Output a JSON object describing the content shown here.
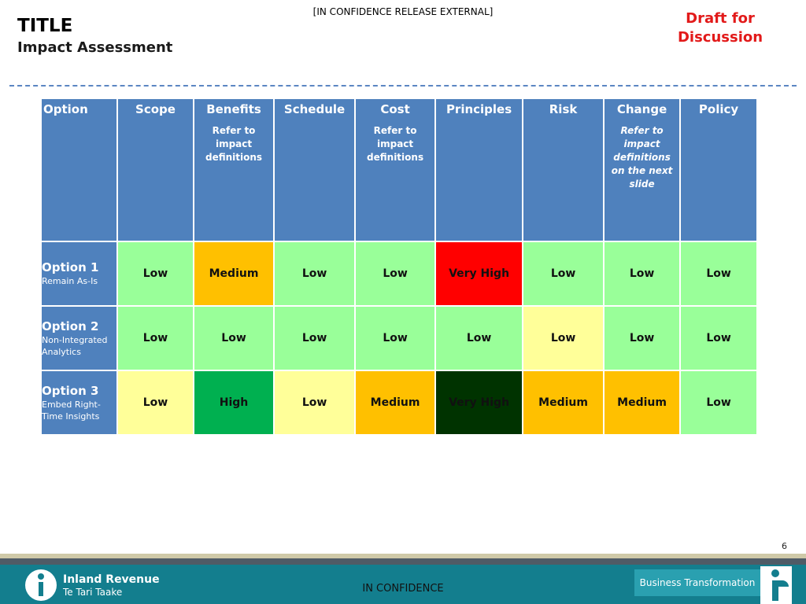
{
  "classification_top": "[IN CONFIDENCE RELEASE EXTERNAL]",
  "title": "TITLE",
  "subtitle": "Impact Assessment",
  "draft_line1": "Draft for",
  "draft_line2": "Discussion",
  "table": {
    "headers": [
      {
        "label": "Option",
        "note": ""
      },
      {
        "label": "Scope",
        "note": ""
      },
      {
        "label": "Benefits",
        "note": "Refer to impact definitions"
      },
      {
        "label": "Schedule",
        "note": ""
      },
      {
        "label": "Cost",
        "note": "Refer to impact definitions"
      },
      {
        "label": "Principles",
        "note": ""
      },
      {
        "label": "Risk",
        "note": ""
      },
      {
        "label": "Change",
        "note": "Refer to impact definitions on the next slide"
      },
      {
        "label": "Policy",
        "note": ""
      }
    ],
    "rows": [
      {
        "name": "Option 1",
        "desc": "Remain As-Is",
        "cells": [
          {
            "text": "Low",
            "bg": "#99ff99"
          },
          {
            "text": "Medium",
            "bg": "#ffc000"
          },
          {
            "text": "Low",
            "bg": "#99ff99"
          },
          {
            "text": "Low",
            "bg": "#99ff99"
          },
          {
            "text": "Very High",
            "bg": "#ff0000"
          },
          {
            "text": "Low",
            "bg": "#99ff99"
          },
          {
            "text": "Low",
            "bg": "#99ff99"
          },
          {
            "text": "Low",
            "bg": "#99ff99"
          }
        ]
      },
      {
        "name": "Option 2",
        "desc": "Non-Integrated Analytics",
        "cells": [
          {
            "text": "Low",
            "bg": "#99ff99"
          },
          {
            "text": "Low",
            "bg": "#99ff99"
          },
          {
            "text": "Low",
            "bg": "#99ff99"
          },
          {
            "text": "Low",
            "bg": "#99ff99"
          },
          {
            "text": "Low",
            "bg": "#99ff99"
          },
          {
            "text": "Low",
            "bg": "#ffff99"
          },
          {
            "text": "Low",
            "bg": "#99ff99"
          },
          {
            "text": "Low",
            "bg": "#99ff99"
          }
        ]
      },
      {
        "name": "Option 3",
        "desc": "Embed Right-Time Insights",
        "cells": [
          {
            "text": "Low",
            "bg": "#ffff99"
          },
          {
            "text": "High",
            "bg": "#00b050"
          },
          {
            "text": "Low",
            "bg": "#ffff99"
          },
          {
            "text": "Medium",
            "bg": "#ffc000"
          },
          {
            "text": "Very High",
            "bg": "#003300"
          },
          {
            "text": "Medium",
            "bg": "#ffc000"
          },
          {
            "text": "Medium",
            "bg": "#ffc000"
          },
          {
            "text": "Low",
            "bg": "#99ff99"
          }
        ]
      }
    ]
  },
  "page_number": "6",
  "brand_name": "Inland Revenue",
  "brand_maori": "Te Tari Taake",
  "classification_footer": "IN CONFIDENCE",
  "footer_button": "Business Transformation",
  "colors": {
    "header_blue": "#4f81bd",
    "draft_red": "#e21a1a",
    "footer_teal": "#137e8e"
  }
}
